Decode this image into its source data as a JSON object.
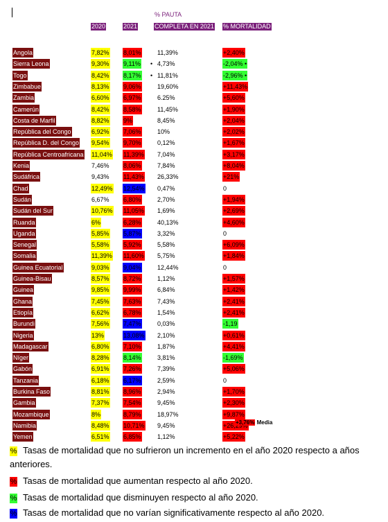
{
  "headers": {
    "y2020": "2020",
    "y2021": "2021",
    "pauta_line1": "% PAUTA",
    "pauta_line2": "COMPLETA EN 2021",
    "mortalidad": "% MORTALIDAD"
  },
  "colors": {
    "header_purple": "#7a1f7a",
    "country_red": "#7a1010",
    "yellow": "#ffff00",
    "red": "#ff0000",
    "green": "#33ff33",
    "blue": "#0000ff"
  },
  "rows": [
    {
      "country": "Angola",
      "v2020": "7,82%",
      "c2020": "yellow",
      "v2021": "8,01%",
      "c2021": "red",
      "mark": "",
      "pauta": "11,39%",
      "mort": "+2,40%",
      "cmort": "red"
    },
    {
      "country": "Sierra Leona",
      "v2020": "9,30%",
      "c2020": "yellow",
      "v2021": "9,11%",
      "c2021": "green",
      "mark": "•",
      "pauta": "4,73%",
      "mort": "-2,04% •",
      "cmort": "green"
    },
    {
      "country": "Togo",
      "v2020": "8,42%",
      "c2020": "yellow",
      "v2021": "8,17%",
      "c2021": "green",
      "mark": "•",
      "pauta": "11,81%",
      "mort": "-2,96% •",
      "cmort": "green"
    },
    {
      "country": "Zimbabue",
      "v2020": "8,13%",
      "c2020": "yellow",
      "v2021": "9,06%",
      "c2021": "red",
      "mark": "",
      "pauta": "19,60%",
      "mort": "+11,43%",
      "cmort": "red"
    },
    {
      "country": "Zambia",
      "v2020": "6,60%",
      "c2020": "yellow",
      "v2021": "6,97%",
      "c2021": "red",
      "mark": "",
      "pauta": "6.25%",
      "mort": "+5,60%",
      "cmort": "red"
    },
    {
      "country": "Camerún",
      "v2020": "8,42%",
      "c2020": "yellow",
      "v2021": "8,58%",
      "c2021": "red",
      "mark": "",
      "pauta": "11,45%",
      "mort": "+1,90%",
      "cmort": "red"
    },
    {
      "country": "Costa de Marfil",
      "v2020": "8,82%",
      "c2020": "yellow",
      "v2021": "9%",
      "c2021": "red",
      "mark": "",
      "pauta": "8,45%",
      "mort": "+2,04%",
      "cmort": "red"
    },
    {
      "country": "República del Congo",
      "v2020": "6,92%",
      "c2020": "yellow",
      "v2021": "7,06%",
      "c2021": "red",
      "mark": "",
      "pauta": "10%",
      "mort": "+2,02%",
      "cmort": "red"
    },
    {
      "country": "República D. del Congo",
      "v2020": "9,54%",
      "c2020": "yellow",
      "v2021": "9,70%",
      "c2021": "red",
      "mark": "",
      "pauta": "0,12%",
      "mort": "+1,67%",
      "cmort": "red"
    },
    {
      "country": "República Centroafricana",
      "v2020": "11,04%",
      "c2020": "yellow",
      "v2021": "11,39%",
      "c2021": "red",
      "mark": "",
      "pauta": "7,04%",
      "mort": "+3,17%",
      "cmort": "red"
    },
    {
      "country": "Kenia",
      "v2020": "7,46%",
      "c2020": "",
      "v2021": "8,06%",
      "c2021": "red",
      "mark": "",
      "pauta": "7,84%",
      "mort": "+8,04%",
      "cmort": "red"
    },
    {
      "country": "Sudáfrica",
      "v2020": "9,43%",
      "c2020": "",
      "v2021": "11,43%",
      "c2021": "red",
      "mark": "",
      "pauta": "26,33%",
      "mort": "+21%",
      "cmort": "red"
    },
    {
      "country": "Chad",
      "v2020": "12,49%",
      "c2020": "yellow",
      "v2021": "12,54%",
      "c2021": "blue",
      "mark": "",
      "pauta": "0,47%",
      "mort": "0",
      "cmort": ""
    },
    {
      "country": "Sudán",
      "v2020": "6,67%",
      "c2020": "",
      "v2021": "6,80%",
      "c2021": "red",
      "mark": "",
      "pauta": "2,70%",
      "mort": "+1,94%",
      "cmort": "red"
    },
    {
      "country": "Sudán del Sur",
      "v2020": "10,76%",
      "c2020": "yellow",
      "v2021": "11,05%",
      "c2021": "red",
      "mark": "",
      "pauta": "1,69%",
      "mort": "+2,69%",
      "cmort": "red"
    },
    {
      "country": "Ruanda",
      "v2020": "6%",
      "c2020": "yellow",
      "v2021": "6,28%",
      "c2021": "red",
      "mark": "",
      "pauta": "40,13%",
      "mort": "+4,60%",
      "cmort": "red"
    },
    {
      "country": "Uganda",
      "v2020": "5,85%",
      "c2020": "yellow",
      "v2021": "5,87%",
      "c2021": "blue",
      "mark": "",
      "pauta": "3,32%",
      "mort": "0",
      "cmort": ""
    },
    {
      "country": "Senegal",
      "v2020": "5,58%",
      "c2020": "yellow",
      "v2021": "5,92%",
      "c2021": "red",
      "mark": "",
      "pauta": "5,58%",
      "mort": "+6,09%",
      "cmort": "red"
    },
    {
      "country": "Somalia",
      "v2020": "11,39%",
      "c2020": "yellow",
      "v2021": "11,60%",
      "c2021": "red",
      "mark": "",
      "pauta": "5,75%",
      "mort": "+1,84%",
      "cmort": "red"
    },
    {
      "country": "Guinea Ecuatorial",
      "v2020": "9,03%",
      "c2020": "yellow",
      "v2021": "9,04%",
      "c2021": "blue",
      "mark": "",
      "pauta": "12,44%",
      "mort": "0",
      "cmort": ""
    },
    {
      "country": "Guinea-Bisau",
      "v2020": "8,57%",
      "c2020": "yellow",
      "v2021": "8,72%",
      "c2021": "red",
      "mark": "",
      "pauta": "1,12%",
      "mort": "+1,57%",
      "cmort": "red"
    },
    {
      "country": "Guinea",
      "v2020": "9,85%",
      "c2020": "yellow",
      "v2021": "9,99%",
      "c2021": "red",
      "mark": "",
      "pauta": "6,84%",
      "mort": "+1,42%",
      "cmort": "red"
    },
    {
      "country": "Ghana",
      "v2020": "7,45%",
      "c2020": "yellow",
      "v2021": "7,63%",
      "c2021": "red",
      "mark": "",
      "pauta": "7,43%",
      "mort": "+2,41%",
      "cmort": "red"
    },
    {
      "country": "Etiopía",
      "v2020": "6,62%",
      "c2020": "yellow",
      "v2021": "6,78%",
      "c2021": "red",
      "mark": "",
      "pauta": "1,54%",
      "mort": "+2,41%",
      "cmort": "red"
    },
    {
      "country": "Burundi",
      "v2020": "7,56%",
      "c2020": "yellow",
      "v2021": "7,47%",
      "c2021": "blue",
      "mark": "",
      "pauta": "0,03%",
      "mort": "-1,19",
      "cmort": "green"
    },
    {
      "country": "Nigeria",
      "v2020": "13%",
      "c2020": "yellow",
      "v2021": "13,08%",
      "c2021": "blue",
      "mark": "",
      "pauta": "2,10%",
      "mort": "+0,61%",
      "cmort": "red"
    },
    {
      "country": "Madagascar",
      "v2020": "6,80%",
      "c2020": "yellow",
      "v2021": "7,10%",
      "c2021": "red",
      "mark": "",
      "pauta": "1,87%",
      "mort": "+4,41%",
      "cmort": "red"
    },
    {
      "country": "Níger",
      "v2020": "8,28%",
      "c2020": "yellow",
      "v2021": "8,14%",
      "c2021": "green",
      "mark": "",
      "pauta": "3,81%",
      "mort": "-1,69%",
      "cmort": "green"
    },
    {
      "country": "Gabón",
      "v2020": "6,91%",
      "c2020": "yellow",
      "v2021": "7,26%",
      "c2021": "red",
      "mark": "",
      "pauta": "7,39%",
      "mort": "+5,06%",
      "cmort": "red"
    },
    {
      "country": "Tanzania",
      "v2020": "6,18%",
      "c2020": "yellow",
      "v2021": "6,17%",
      "c2021": "blue",
      "mark": "",
      "pauta": "2,59%",
      "mort": "0",
      "cmort": ""
    },
    {
      "country": "Burkina Faso",
      "v2020": "8,81%",
      "c2020": "yellow",
      "v2021": "8,96%",
      "c2021": "red",
      "mark": "",
      "pauta": "2,94%",
      "mort": "+1,70%",
      "cmort": "red"
    },
    {
      "country": "Gambia",
      "v2020": "7,37%",
      "c2020": "yellow",
      "v2021": "7,54%",
      "c2021": "red",
      "mark": "",
      "pauta": "9,45%",
      "mort": "+2,30%",
      "cmort": "red"
    },
    {
      "country": "Mozambique",
      "v2020": "8%",
      "c2020": "yellow",
      "v2021": "8,79%",
      "c2021": "red",
      "mark": "",
      "pauta": "18,97%",
      "mort": "+9,87%",
      "cmort": "red"
    },
    {
      "country": "Namibia",
      "v2020": "8,48%",
      "c2020": "yellow",
      "v2021": "10,71%",
      "c2021": "red",
      "mark": "",
      "pauta": "9,45%",
      "mort": "+26,29%",
      "cmort": "red"
    },
    {
      "country": "Yemen",
      "v2020": "6,51%",
      "c2020": "yellow",
      "v2021": "6,85%",
      "c2021": "red",
      "mark": "",
      "pauta": "1,12%",
      "mort": "+5,22%",
      "cmort": "red"
    }
  ],
  "media": {
    "value": "+3,76%",
    "label": "Media"
  },
  "legend": [
    {
      "color": "yellow",
      "symbol": "%",
      "text": "Tasas de mortalidad que no sufrieron un incremento en el año 2020 respecto a años anteriores."
    },
    {
      "color": "red",
      "symbol": "%",
      "text": "Tasas de mortalidad que aumentan respecto al año 2020."
    },
    {
      "color": "green",
      "symbol": "%",
      "text": "Tasas de mortalidad que disminuyen respecto al año 2020."
    },
    {
      "color": "blue",
      "symbol": "%",
      "text": "Tasas de mortalidad que no varían significativamente respecto al año 2020."
    }
  ]
}
